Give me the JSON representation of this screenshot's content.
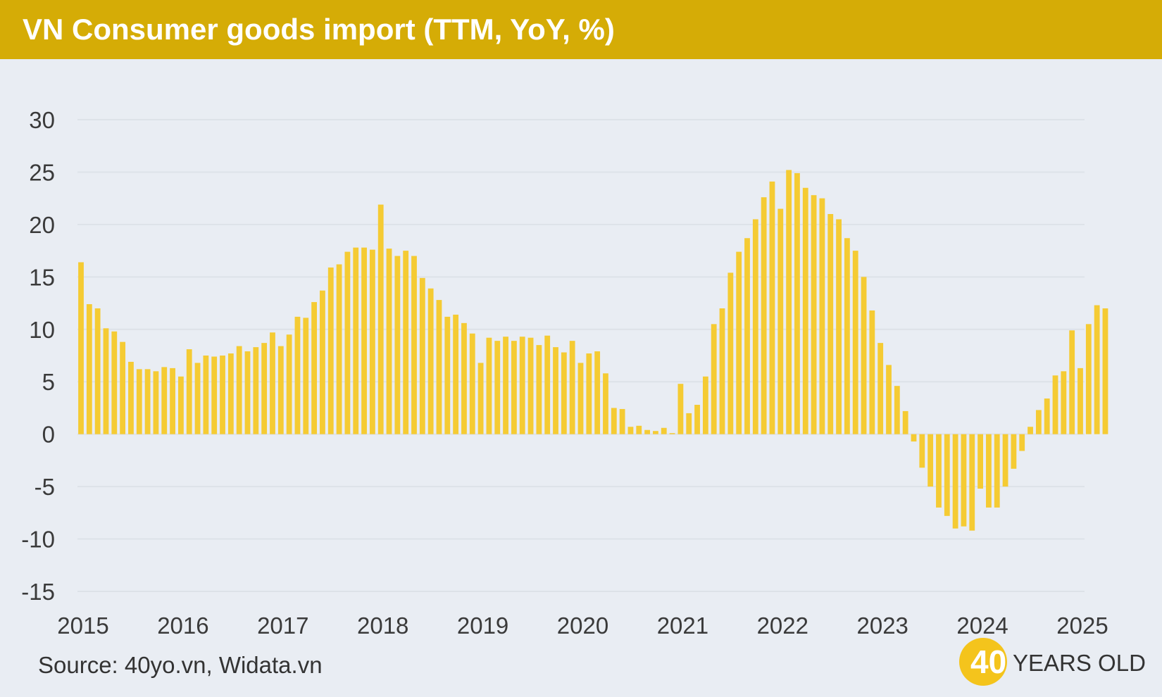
{
  "title": "VN Consumer goods import (TTM, YoY, %)",
  "source": "Source: 40yo.vn, Widata.vn",
  "logo": {
    "number": "40",
    "text": "YEARS OLD"
  },
  "colors": {
    "header": "#d5ac06",
    "bar": "#f5cb33",
    "background": "#e9edf3",
    "grid": "#dde2e8",
    "text": "#3a3a3a"
  },
  "chart_data": {
    "type": "bar",
    "title": "VN Consumer goods import (TTM, YoY, %)",
    "xlabel": "",
    "ylabel": "",
    "ylim": [
      -15,
      30
    ],
    "yticks": [
      30,
      25,
      20,
      15,
      10,
      5,
      0,
      -5,
      -10,
      -15
    ],
    "x_start": "2015-01",
    "xticks": [
      "2015",
      "2016",
      "2017",
      "2018",
      "2019",
      "2020",
      "2021",
      "2022",
      "2023",
      "2024",
      "2025"
    ],
    "grid": true,
    "legend": "none",
    "values": [
      16.4,
      12.4,
      12.0,
      10.1,
      9.8,
      8.8,
      6.9,
      6.2,
      6.2,
      6.0,
      6.4,
      6.3,
      5.5,
      8.1,
      6.8,
      7.5,
      7.4,
      7.5,
      7.7,
      8.4,
      7.9,
      8.3,
      8.7,
      9.7,
      8.4,
      9.5,
      11.2,
      11.1,
      12.6,
      13.7,
      15.9,
      16.2,
      17.4,
      17.8,
      17.8,
      17.6,
      21.9,
      17.7,
      17.0,
      17.5,
      17.0,
      14.9,
      13.9,
      12.8,
      11.2,
      11.4,
      10.6,
      9.6,
      6.8,
      9.2,
      8.9,
      9.3,
      8.9,
      9.3,
      9.2,
      8.5,
      9.4,
      8.3,
      7.8,
      8.9,
      6.8,
      7.7,
      7.9,
      5.8,
      2.5,
      2.4,
      0.7,
      0.8,
      0.4,
      0.3,
      0.6,
      0.1,
      4.8,
      2.0,
      2.8,
      5.5,
      10.5,
      12.0,
      15.4,
      17.4,
      18.7,
      20.5,
      22.6,
      24.1,
      21.5,
      25.2,
      24.9,
      23.5,
      22.8,
      22.5,
      21.0,
      20.5,
      18.7,
      17.5,
      15.0,
      11.8,
      8.7,
      6.6,
      4.6,
      2.2,
      -0.7,
      -3.2,
      -5.0,
      -7.0,
      -7.8,
      -9.0,
      -8.8,
      -9.2,
      -5.2,
      -7.0,
      -7.0,
      -5.0,
      -3.3,
      -1.6,
      0.7,
      2.3,
      3.4,
      5.6,
      6.0,
      9.9,
      6.3,
      10.5,
      12.3,
      12.0
    ]
  }
}
